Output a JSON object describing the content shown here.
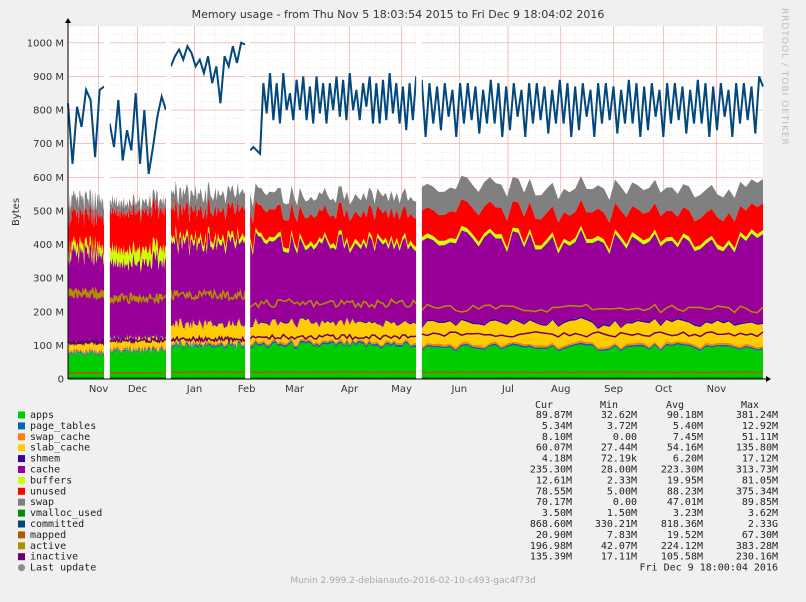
{
  "chart_data": {
    "type": "area",
    "title": "Memory usage - from Thu Nov  5 18:03:54 2015 to Fri Dec  9 18:04:02 2016",
    "ylabel": "Bytes",
    "side_label": "RRDTOOL / TOBI OETIKER",
    "footer": "Munin 2.999.2-debianauto-2016-02-10-c493-gac4f73d",
    "ylim": [
      0,
      1050
    ],
    "y_unit": "M",
    "y_ticks": [
      {
        "v": 0,
        "label": "0"
      },
      {
        "v": 100,
        "label": "100 M"
      },
      {
        "v": 200,
        "label": "200 M"
      },
      {
        "v": 300,
        "label": "300 M"
      },
      {
        "v": 400,
        "label": "400 M"
      },
      {
        "v": 500,
        "label": "500 M"
      },
      {
        "v": 600,
        "label": "600 M"
      },
      {
        "v": 700,
        "label": "700 M"
      },
      {
        "v": 800,
        "label": "800 M"
      },
      {
        "v": 900,
        "label": "900 M"
      },
      {
        "v": 1000,
        "label": "1000 M"
      }
    ],
    "x_range": [
      0,
      1
    ],
    "x_ticks": [
      {
        "v": 0.044,
        "label": "Nov"
      },
      {
        "v": 0.1,
        "label": "Dec"
      },
      {
        "v": 0.182,
        "label": "Jan"
      },
      {
        "v": 0.257,
        "label": "Feb"
      },
      {
        "v": 0.326,
        "label": "Mar"
      },
      {
        "v": 0.405,
        "label": "Apr"
      },
      {
        "v": 0.48,
        "label": "May"
      },
      {
        "v": 0.563,
        "label": "Jun"
      },
      {
        "v": 0.633,
        "label": "Jul"
      },
      {
        "v": 0.709,
        "label": "Aug"
      },
      {
        "v": 0.785,
        "label": "Sep"
      },
      {
        "v": 0.857,
        "label": "Oct"
      },
      {
        "v": 0.933,
        "label": "Nov"
      }
    ],
    "gaps": [
      [
        0.052,
        0.06
      ],
      [
        0.141,
        0.148
      ],
      [
        0.255,
        0.262
      ],
      [
        0.501,
        0.509
      ]
    ],
    "segments": [
      {
        "start": 0,
        "end": 0.052,
        "apps": 75,
        "page_tables": 5,
        "slab": 22,
        "shmem": 4,
        "cache": 258,
        "buffers": 24,
        "unused": 92,
        "swap": 45,
        "committed": [
          820,
          640,
          810,
          750,
          860,
          830,
          660,
          860,
          870
        ],
        "mapped": 18,
        "active": 255,
        "inactive": 110
      },
      {
        "start": 0.06,
        "end": 0.141,
        "apps": 82,
        "page_tables": 5,
        "slab": 26,
        "shmem": 4,
        "cache": 225,
        "buffers": 40,
        "unused": 113,
        "swap": 28,
        "committed": [
          760,
          690,
          830,
          650,
          740,
          680,
          850,
          640,
          800,
          610,
          690,
          780,
          840,
          800
        ],
        "mapped": 18,
        "active": 240,
        "inactive": 115
      },
      {
        "start": 0.148,
        "end": 0.255,
        "apps": 96,
        "page_tables": 6,
        "slab": 55,
        "shmem": 4,
        "cache": 235,
        "buffers": 16,
        "unused": 84,
        "swap": 48,
        "committed": [
          930,
          960,
          980,
          950,
          990,
          970,
          930,
          950,
          910,
          960,
          880,
          930,
          820,
          960,
          930,
          990,
          940,
          1000,
          995
        ],
        "mapped": 20,
        "active": 250,
        "inactive": 118
      },
      {
        "start": 0.262,
        "end": 0.501,
        "apps": 98,
        "page_tables": 6,
        "slab": 55,
        "shmem": 4,
        "cache": 232,
        "buffers": 12,
        "unused": 82,
        "swap": 50,
        "committed": [
          680,
          690,
          680,
          670,
          880,
          790,
          910,
          770,
          880,
          760,
          910,
          800,
          850,
          770,
          890,
          800,
          900,
          770,
          870,
          760,
          900,
          790,
          880,
          760,
          880,
          800,
          900,
          780,
          890,
          770,
          910,
          800,
          860,
          770,
          880,
          810,
          900,
          760,
          880,
          760,
          890,
          770,
          910,
          790,
          880,
          760,
          870,
          740,
          880,
          770,
          900
        ],
        "mapped": 20,
        "active": 225,
        "inactive": 125
      },
      {
        "start": 0.509,
        "end": 1,
        "apps": 92,
        "page_tables": 5,
        "slab": 62,
        "shmem": 5,
        "cache": 235,
        "buffers": 12,
        "unused": 79,
        "swap": 70,
        "committed": [
          890,
          720,
          880,
          760,
          870,
          740,
          880,
          780,
          860,
          720,
          880,
          760,
          880,
          770,
          870,
          730,
          860,
          760,
          890,
          760,
          880,
          720,
          870,
          740,
          880,
          780,
          860,
          720,
          880,
          760,
          880,
          770,
          870,
          730,
          860,
          760,
          890,
          760,
          880,
          720,
          870,
          740,
          880,
          780,
          860,
          720,
          880,
          760,
          880,
          770,
          870,
          730,
          860,
          760,
          890,
          760,
          880,
          720,
          870,
          740,
          880,
          780,
          860,
          720,
          880,
          760,
          880,
          770,
          870,
          730,
          860,
          760,
          890,
          760,
          880,
          720,
          870,
          740,
          880,
          780,
          860,
          720,
          880,
          760,
          880,
          770,
          870,
          730,
          900,
          870
        ],
        "mapped": 20,
        "active": 210,
        "inactive": 133
      }
    ],
    "columns": [
      "Cur",
      "Min",
      "Avg",
      "Max"
    ],
    "series": [
      {
        "name": "apps",
        "color": "#00cc00",
        "kind": "area",
        "cur": "89.87M",
        "min": "32.62M",
        "avg": "90.18M",
        "max": "381.24M"
      },
      {
        "name": "page_tables",
        "color": "#0066b3",
        "kind": "area",
        "cur": "5.34M",
        "min": "3.72M",
        "avg": "5.40M",
        "max": "12.92M"
      },
      {
        "name": "swap_cache",
        "color": "#ff8000",
        "kind": "area",
        "cur": "8.10M",
        "min": "0.00",
        "avg": "7.45M",
        "max": "51.11M"
      },
      {
        "name": "slab_cache",
        "color": "#ffcc00",
        "kind": "area",
        "cur": "60.07M",
        "min": "27.44M",
        "avg": "54.16M",
        "max": "135.80M"
      },
      {
        "name": "shmem",
        "color": "#330099",
        "kind": "area",
        "cur": "4.18M",
        "min": "72.19k",
        "avg": "6.20M",
        "max": "17.12M"
      },
      {
        "name": "cache",
        "color": "#990099",
        "kind": "area",
        "cur": "235.30M",
        "min": "28.00M",
        "avg": "223.30M",
        "max": "313.73M"
      },
      {
        "name": "buffers",
        "color": "#ccff00",
        "kind": "area",
        "cur": "12.61M",
        "min": "2.33M",
        "avg": "19.95M",
        "max": "81.05M"
      },
      {
        "name": "unused",
        "color": "#ff0000",
        "kind": "area",
        "cur": "78.55M",
        "min": "5.00M",
        "avg": "88.23M",
        "max": "375.34M"
      },
      {
        "name": "swap",
        "color": "#808080",
        "kind": "area",
        "cur": "70.17M",
        "min": "0.00",
        "avg": "47.01M",
        "max": "89.85M"
      },
      {
        "name": "vmalloc_used",
        "color": "#008f00",
        "kind": "line",
        "cur": "3.50M",
        "min": "1.50M",
        "avg": "3.23M",
        "max": "3.62M"
      },
      {
        "name": "committed",
        "color": "#00487d",
        "kind": "line",
        "cur": "868.60M",
        "min": "330.21M",
        "avg": "818.36M",
        "max": "2.33G"
      },
      {
        "name": "mapped",
        "color": "#b35a00",
        "kind": "line",
        "cur": "20.90M",
        "min": "7.83M",
        "avg": "19.52M",
        "max": "67.30M"
      },
      {
        "name": "active",
        "color": "#b38f00",
        "kind": "line",
        "cur": "196.98M",
        "min": "42.07M",
        "avg": "224.12M",
        "max": "383.28M"
      },
      {
        "name": "inactive",
        "color": "#6b006b",
        "kind": "line",
        "cur": "135.39M",
        "min": "17.11M",
        "avg": "105.58M",
        "max": "230.16M"
      }
    ],
    "last_update": {
      "name": "Last update",
      "value": "Fri Dec  9 18:00:04 2016",
      "color": "#8c8c8c"
    },
    "grid": true,
    "legend_placement": "bottom"
  }
}
